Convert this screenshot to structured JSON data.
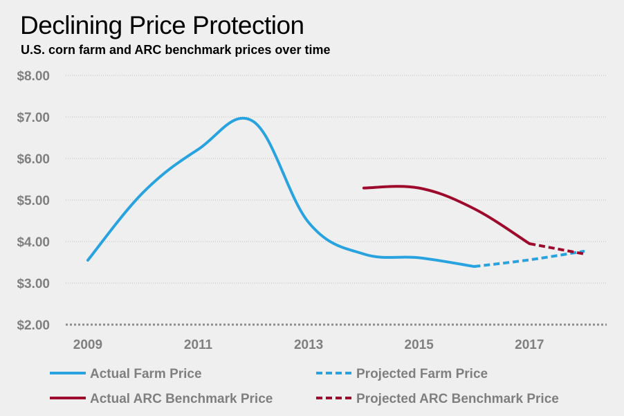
{
  "chart_data": {
    "type": "line",
    "title": "Declining Price Protection",
    "subtitle": "U.S. corn farm and ARC benchmark prices over time",
    "xlabel": "",
    "ylabel": "",
    "xlim": [
      2008.6,
      2018.4
    ],
    "ylim": [
      2.0,
      8.0
    ],
    "x_ticks": [
      2009,
      2011,
      2013,
      2015,
      2017
    ],
    "x_tick_labels": [
      "2009",
      "2011",
      "2013",
      "2015",
      "2017"
    ],
    "y_ticks": [
      2,
      3,
      4,
      5,
      6,
      7,
      8
    ],
    "y_tick_labels": [
      "$2.00",
      "$3.00",
      "$4.00",
      "$5.00",
      "$6.00",
      "$7.00",
      "$8.00"
    ],
    "grid": "horizontal dotted",
    "legend_position": "bottom",
    "series": [
      {
        "name": "Actual Farm Price",
        "color": "#29a3e0",
        "dashed": false,
        "x": [
          2009,
          2010,
          2011,
          2012,
          2013,
          2014,
          2015,
          2016
        ],
        "values": [
          3.55,
          5.18,
          6.22,
          6.89,
          4.46,
          3.7,
          3.61,
          3.4
        ]
      },
      {
        "name": "Projected Farm Price",
        "color": "#29a3e0",
        "dashed": true,
        "x": [
          2016,
          2017,
          2018
        ],
        "values": [
          3.4,
          3.56,
          3.77
        ]
      },
      {
        "name": "Actual ARC Benchmark Price",
        "color": "#9e0a2c",
        "dashed": false,
        "x": [
          2014,
          2015,
          2016,
          2017
        ],
        "values": [
          5.29,
          5.29,
          4.79,
          3.95
        ]
      },
      {
        "name": "Projected ARC Benchmark Price",
        "color": "#9e0a2c",
        "dashed": true,
        "x": [
          2017,
          2018
        ],
        "values": [
          3.95,
          3.7
        ]
      }
    ]
  }
}
